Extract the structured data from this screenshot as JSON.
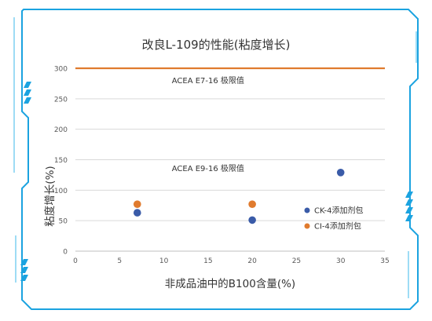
{
  "chart_data": {
    "type": "scatter",
    "title": "改良L-109的性能(粘度增长)",
    "xlabel": "非成品油中的B100含量(%)",
    "ylabel": "粘度增长(%)",
    "xlim": [
      0,
      35
    ],
    "ylim": [
      0,
      300
    ],
    "x_ticks": [
      "0",
      "5",
      "10",
      "15",
      "20",
      "25",
      "30",
      "35"
    ],
    "y_ticks": [
      "0",
      "50",
      "100",
      "150",
      "200",
      "250",
      "300"
    ],
    "grid": true,
    "legend_position": "right",
    "series": [
      {
        "name": "CK-4添加剂包",
        "color": "#3a5ba8",
        "points": [
          {
            "x": 7,
            "y": 63
          },
          {
            "x": 20,
            "y": 51
          },
          {
            "x": 30,
            "y": 129
          }
        ]
      },
      {
        "name": "CI-4添加剂包",
        "color": "#e07b2e",
        "points": [
          {
            "x": 7,
            "y": 77
          },
          {
            "x": 20,
            "y": 77
          }
        ]
      }
    ],
    "reference_lines": [
      {
        "label": "ACEA E7-16 极限值",
        "y": 300,
        "color": "#e07b2e"
      }
    ],
    "annotations": [
      {
        "text": "ACEA E9-16 极限值",
        "x": 15,
        "y": 130
      }
    ]
  },
  "frame": {
    "accent": "#1ba3e0",
    "accent_light": "#7fd0f2"
  }
}
